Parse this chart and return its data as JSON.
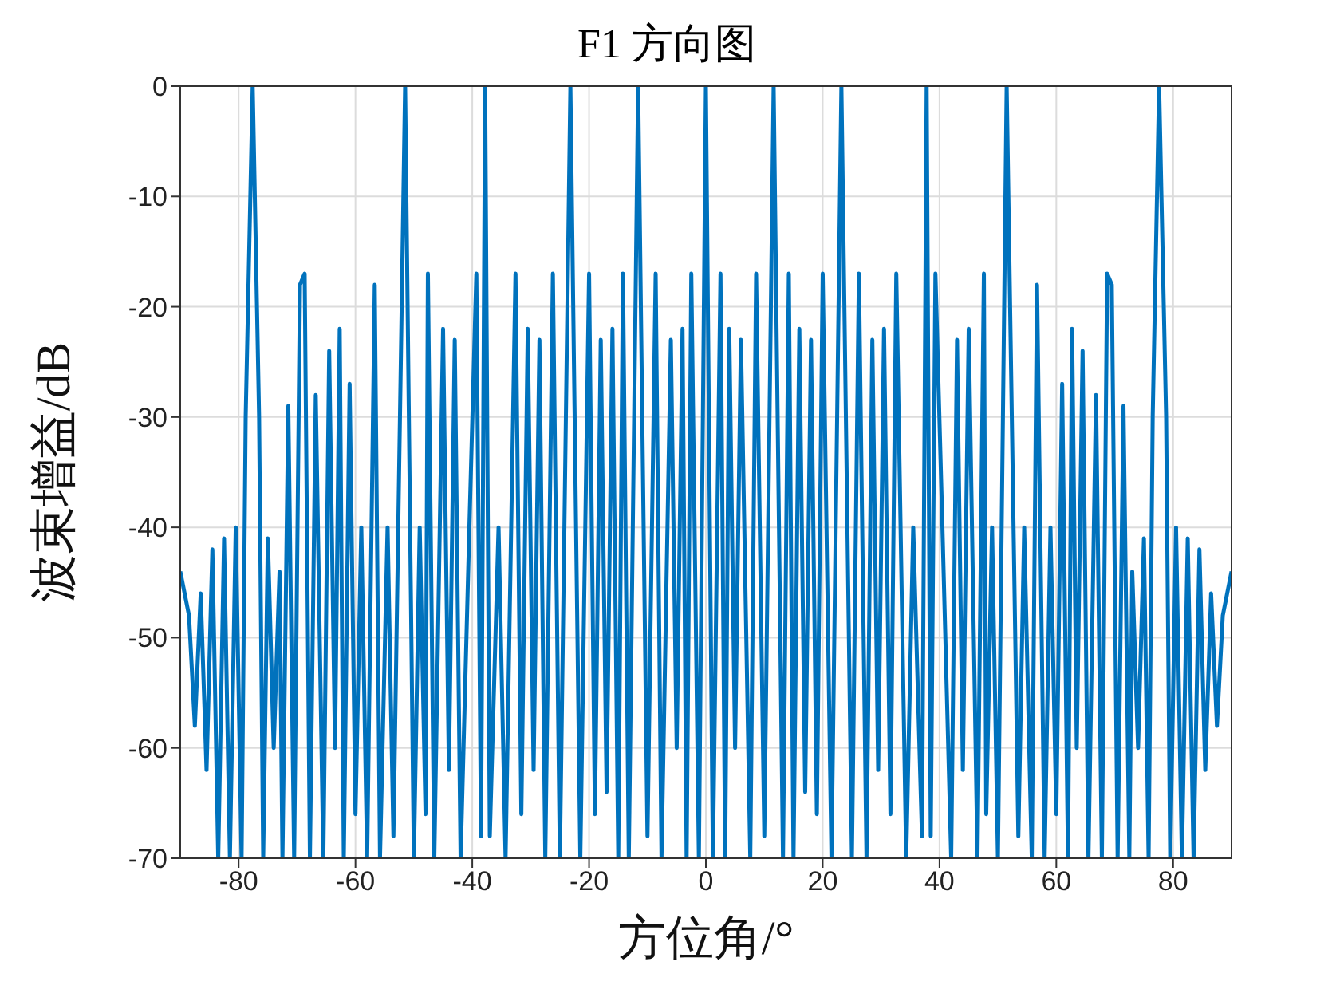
{
  "chart_data": {
    "type": "line",
    "title": "F1 方向图",
    "xlabel": "方位角/°",
    "ylabel": "波束增益/dB",
    "x": [
      -90,
      -88.5,
      -87.5,
      -86.5,
      -85.5,
      -84.5,
      -83.5,
      -82.5,
      -81.5,
      -80.5,
      -79.5,
      -78.8,
      -77.6,
      -76.5,
      -75.8,
      -75,
      -74,
      -73,
      -72.5,
      -71.5,
      -70.5,
      -69.5,
      -68.7,
      -67.8,
      -66.8,
      -65.5,
      -64.5,
      -63.5,
      -62.7,
      -62,
      -61,
      -60,
      -59,
      -58,
      -56.7,
      -55.8,
      -54.5,
      -53.5,
      -51.5,
      -50,
      -49,
      -48,
      -47.6,
      -46.5,
      -45,
      -44,
      -43,
      -42,
      -40.5,
      -39.3,
      -38.5,
      -37.8,
      -37,
      -35.5,
      -34.3,
      -32.6,
      -31.6,
      -30.5,
      -29.5,
      -28.5,
      -27.5,
      -26.2,
      -25,
      -23.2,
      -21.5,
      -20,
      -19,
      -18,
      -17,
      -16,
      -15,
      -14.2,
      -13.2,
      -11.6,
      -10,
      -8.6,
      -7.6,
      -6,
      -5,
      -4,
      -3.3,
      -2.5,
      -1.2,
      0,
      1.2,
      2.5,
      3.3,
      4,
      5,
      6,
      7.6,
      8.6,
      10,
      11.6,
      13.2,
      14.2,
      15,
      16,
      17,
      18,
      19,
      20,
      21.5,
      23.2,
      25,
      26.2,
      27.5,
      28.5,
      29.5,
      30.5,
      31.6,
      32.6,
      34.3,
      35.5,
      37,
      37.8,
      38.5,
      39.3,
      40.5,
      42,
      43,
      44,
      45,
      46.5,
      47.6,
      48,
      49,
      50,
      51.5,
      53.5,
      54.5,
      55.8,
      56.7,
      58,
      59,
      60,
      61,
      62,
      62.7,
      63.5,
      64.5,
      65.5,
      66.8,
      67.8,
      68.7,
      69.5,
      70.5,
      71.5,
      72.5,
      73,
      74,
      75,
      75.8,
      76.5,
      77.6,
      78.8,
      79.5,
      80.5,
      81.5,
      82.5,
      83.5,
      84.5,
      85.5,
      86.5,
      87.5,
      88.5,
      90
    ],
    "series": [
      {
        "color": "#0072bd",
        "values": [
          -44,
          -48,
          -58,
          -46,
          -62,
          -42,
          -70,
          -41,
          -70,
          -40,
          -70,
          -30,
          0,
          -30,
          -70,
          -41,
          -60,
          -44,
          -70,
          -29,
          -70,
          -18,
          -17,
          -70,
          -28,
          -70,
          -24,
          -60,
          -22,
          -70,
          -27,
          -66,
          -40,
          -70,
          -18,
          -70,
          -40,
          -68,
          0,
          -70,
          -40,
          -66,
          -17,
          -70,
          -22,
          -62,
          -23,
          -70,
          -40,
          -17,
          -68,
          0,
          -68,
          -40,
          -70,
          -17,
          -66,
          -22,
          -62,
          -23,
          -70,
          -17,
          -70,
          0,
          -70,
          -17,
          -66,
          -23,
          -64,
          -22,
          -70,
          -17,
          -70,
          0,
          -68,
          -17,
          -70,
          -23,
          -60,
          -22,
          -70,
          -17,
          -70,
          0,
          -70,
          -17,
          -70,
          -22,
          -60,
          -23,
          -70,
          -17,
          -68,
          0,
          -70,
          -17,
          -70,
          -22,
          -64,
          -23,
          -66,
          -17,
          -70,
          0,
          -70,
          -17,
          -70,
          -23,
          -62,
          -22,
          -66,
          -17,
          -70,
          -40,
          -68,
          0,
          -68,
          -17,
          -40,
          -70,
          -23,
          -62,
          -22,
          -70,
          -17,
          -66,
          -40,
          -70,
          0,
          -68,
          -40,
          -70,
          -18,
          -70,
          -40,
          -66,
          -27,
          -70,
          -22,
          -60,
          -24,
          -70,
          -28,
          -70,
          -17,
          -18,
          -70,
          -29,
          -70,
          -44,
          -60,
          -41,
          -70,
          -30,
          0,
          -30,
          -70,
          -40,
          -70,
          -41,
          -70,
          -42,
          -62,
          -46,
          -58,
          -48,
          -44
        ]
      }
    ],
    "xlim": [
      -90,
      90
    ],
    "xticks": [
      -80,
      -60,
      -40,
      -20,
      0,
      20,
      40,
      60,
      80
    ],
    "ylim": [
      -70,
      0
    ],
    "yticks": [
      -70,
      -60,
      -50,
      -40,
      -30,
      -20,
      -10,
      0
    ],
    "grid": true,
    "marker": "none",
    "line_style": "solid"
  }
}
